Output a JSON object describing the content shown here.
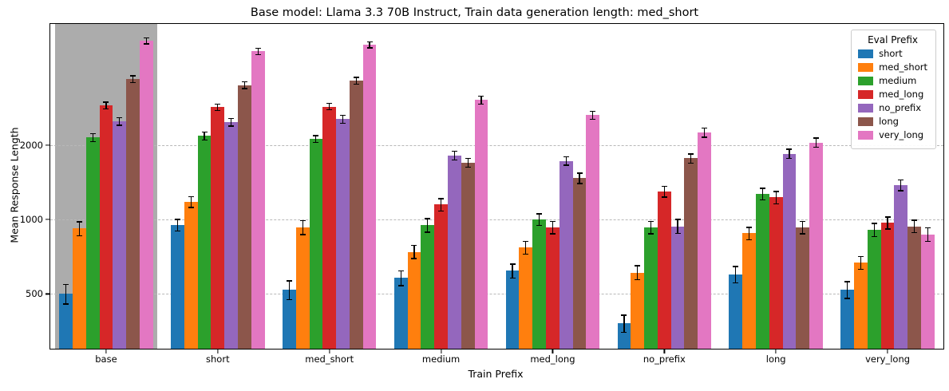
{
  "chart_data": {
    "type": "bar",
    "title": "Base model: Llama 3.3 70B Instruct, Train data generation length: med_short",
    "xlabel": "Train Prefix",
    "ylabel": "Mean Response Length",
    "legend_title": "Eval Prefix",
    "yscale": "log",
    "grid": "horizontal-dashed",
    "legend_position": "upper right",
    "yticks": [
      500,
      1000,
      2000
    ],
    "ylim": [
      300,
      6200
    ],
    "categories": [
      "base",
      "short",
      "med_short",
      "medium",
      "med_long",
      "no_prefix",
      "long",
      "very_long"
    ],
    "highlighted_category": "base",
    "highlight_color": "#acacac",
    "series": [
      {
        "name": "short",
        "color": "#1f77b4",
        "values": [
          500,
          950,
          520,
          580,
          620,
          380,
          600,
          520
        ],
        "errors": [
          45,
          50,
          45,
          40,
          40,
          30,
          45,
          40
        ]
      },
      {
        "name": "med_short",
        "color": "#ff7f0e",
        "values": [
          920,
          1180,
          930,
          740,
          770,
          610,
          880,
          670
        ],
        "errors": [
          60,
          60,
          60,
          45,
          45,
          40,
          50,
          40
        ]
      },
      {
        "name": "medium",
        "color": "#2ca02c",
        "values": [
          2150,
          2180,
          2120,
          950,
          1000,
          930,
          1270,
          910
        ],
        "errors": [
          80,
          80,
          70,
          60,
          55,
          55,
          70,
          55
        ]
      },
      {
        "name": "med_long",
        "color": "#d62728",
        "values": [
          2900,
          2850,
          2870,
          1150,
          930,
          1300,
          1230,
          970
        ],
        "errors": [
          90,
          90,
          85,
          65,
          55,
          65,
          70,
          55
        ]
      },
      {
        "name": "no_prefix",
        "color": "#9467bd",
        "values": [
          2500,
          2480,
          2550,
          1820,
          1730,
          940,
          1850,
          1380
        ],
        "errors": [
          90,
          90,
          90,
          75,
          70,
          60,
          80,
          70
        ]
      },
      {
        "name": "long",
        "color": "#8c564b",
        "values": [
          3700,
          3500,
          3650,
          1700,
          1470,
          1770,
          930,
          940
        ],
        "errors": [
          120,
          110,
          120,
          70,
          70,
          75,
          55,
          55
        ]
      },
      {
        "name": "very_long",
        "color": "#e377c2",
        "values": [
          5300,
          4800,
          5100,
          3050,
          2650,
          2250,
          2050,
          870
        ],
        "errors": [
          150,
          140,
          140,
          110,
          100,
          95,
          90,
          55
        ]
      }
    ]
  }
}
